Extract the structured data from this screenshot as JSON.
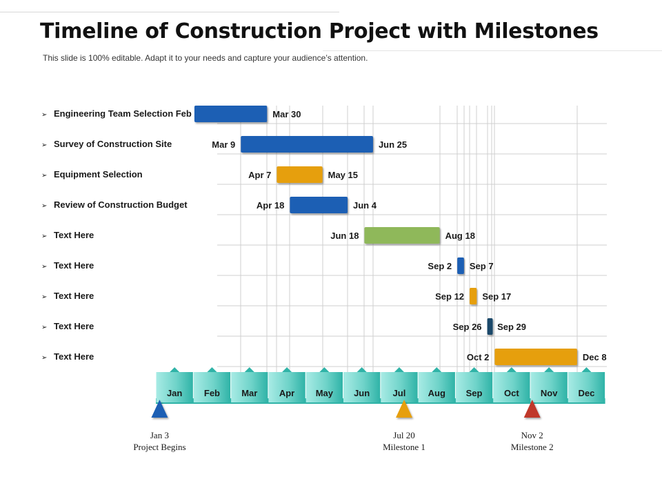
{
  "header": {
    "title": "Timeline of Construction Project with Milestones",
    "subtitle": "This slide is 100% editable. Adapt it to your needs and capture your audience’s attention."
  },
  "chart_data": {
    "type": "gantt",
    "months": [
      "Jan",
      "Feb",
      "Mar",
      "Apr",
      "May",
      "Jun",
      "Jul",
      "Aug",
      "Sep",
      "Oct",
      "Nov",
      "Dec"
    ],
    "tasks": [
      {
        "label": "Engineering  Team Selection Feb 2",
        "start_label": "",
        "end_label": "Mar 30",
        "start": 2.03,
        "end": 3.97,
        "color": "#1f5fb4"
      },
      {
        "label": "Survey of Construction  Site",
        "start_label": "Mar 9",
        "end_label": "Jun 25",
        "start": 3.27,
        "end": 6.8,
        "color": "#1f5fb4"
      },
      {
        "label": "Equipment  Selection",
        "start_label": "Apr 7",
        "end_label": "May 15",
        "start": 4.23,
        "end": 5.45,
        "color": "#e69f0f"
      },
      {
        "label": "Review of Construction  Budget",
        "start_label": "Apr 18",
        "end_label": "Jun 4",
        "start": 4.58,
        "end": 6.12,
        "color": "#1f5fb4"
      },
      {
        "label": "Text Here",
        "start_label": "Jun 18",
        "end_label": "Aug 18",
        "start": 6.57,
        "end": 8.58,
        "color": "#8fb85a"
      },
      {
        "label": "Text Here",
        "start_label": "Sep 2",
        "end_label": "Sep 7",
        "start": 9.05,
        "end": 9.23,
        "color": "#1f5fb4"
      },
      {
        "label": "Text Here",
        "start_label": "Sep 12",
        "end_label": "Sep 17",
        "start": 9.38,
        "end": 9.57,
        "color": "#e69f0f"
      },
      {
        "label": "Text Here",
        "start_label": "Sep 26",
        "end_label": "Sep 29",
        "start": 9.85,
        "end": 9.97,
        "color": "#1b4a6b"
      },
      {
        "label": "Text Here",
        "start_label": "Oct 2",
        "end_label": "Dec 8",
        "start": 10.05,
        "end": 12.25,
        "color": "#e69f0f"
      }
    ],
    "milestones": [
      {
        "date": "Jan 3",
        "name": "Project Begins",
        "value": 1.1,
        "color": "#1f5fb4"
      },
      {
        "date": "Jul 20",
        "name": "Milestone 1",
        "value": 7.63,
        "color": "#e69f0f"
      },
      {
        "date": "Nov 2",
        "name": "Milestone 2",
        "value": 11.05,
        "color": "#c0392b"
      }
    ],
    "colors": {
      "axis_teal": "#2fb3a7",
      "axis_light": "#a8ebe5",
      "grid": "#cfcfcf"
    }
  }
}
